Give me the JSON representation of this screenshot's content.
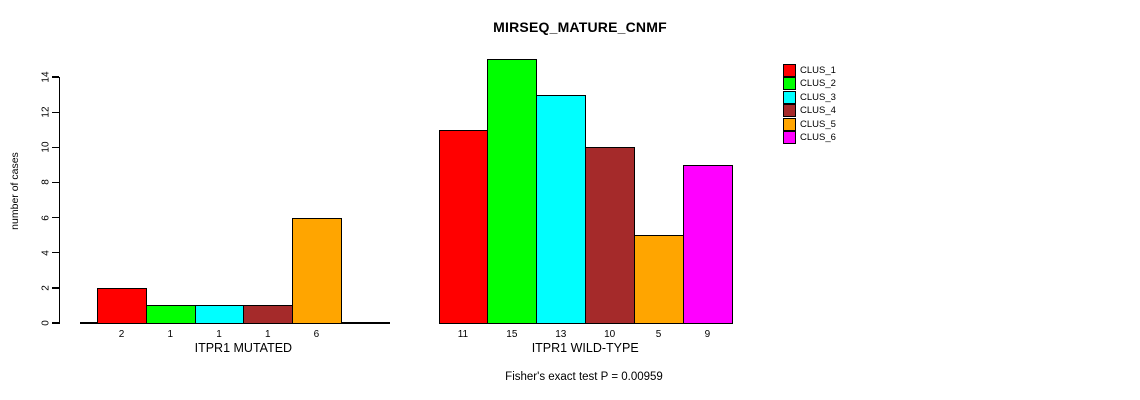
{
  "chart_data": {
    "type": "bar",
    "title": "MIRSEQ_MATURE_CNMF",
    "ylabel": "number of cases",
    "ylim": [
      0,
      14
    ],
    "yticks": [
      0,
      2,
      4,
      6,
      8,
      10,
      12,
      14
    ],
    "annotation": "Fisher's exact test P = 0.00959",
    "grid": false,
    "legend_position": "right",
    "legend": [
      {
        "label": "CLUS_1",
        "color": "#FF0000"
      },
      {
        "label": "CLUS_2",
        "color": "#00FF00"
      },
      {
        "label": "CLUS_3",
        "color": "#00FFFF"
      },
      {
        "label": "CLUS_4",
        "color": "#A52A2A"
      },
      {
        "label": "CLUS_5",
        "color": "#FFA500"
      },
      {
        "label": "CLUS_6",
        "color": "#FF00FF"
      }
    ],
    "groups": [
      {
        "label": "ITPR1 MUTATED",
        "bars": [
          {
            "cluster": "CLUS_1",
            "value": 2,
            "label": "2",
            "color": "#FF0000"
          },
          {
            "cluster": "CLUS_2",
            "value": 1,
            "label": "1",
            "color": "#00FF00"
          },
          {
            "cluster": "CLUS_3",
            "value": 1,
            "label": "1",
            "color": "#00FFFF"
          },
          {
            "cluster": "CLUS_4",
            "value": 1,
            "label": "1",
            "color": "#A52A2A"
          },
          {
            "cluster": "CLUS_5",
            "value": 6,
            "label": "6",
            "color": "#FFA500"
          },
          {
            "cluster": "CLUS_6",
            "value": 0,
            "label": "",
            "color": "#FF00FF"
          }
        ]
      },
      {
        "label": "ITPR1 WILD-TYPE",
        "bars": [
          {
            "cluster": "CLUS_1",
            "value": 11,
            "label": "11",
            "color": "#FF0000"
          },
          {
            "cluster": "CLUS_2",
            "value": 15,
            "label": "15",
            "color": "#00FF00"
          },
          {
            "cluster": "CLUS_3",
            "value": 13,
            "label": "13",
            "color": "#00FFFF"
          },
          {
            "cluster": "CLUS_4",
            "value": 10,
            "label": "10",
            "color": "#A52A2A"
          },
          {
            "cluster": "CLUS_5",
            "value": 5,
            "label": "5",
            "color": "#FFA500"
          },
          {
            "cluster": "CLUS_6",
            "value": 9,
            "label": "9",
            "color": "#FF00FF"
          }
        ]
      }
    ]
  }
}
